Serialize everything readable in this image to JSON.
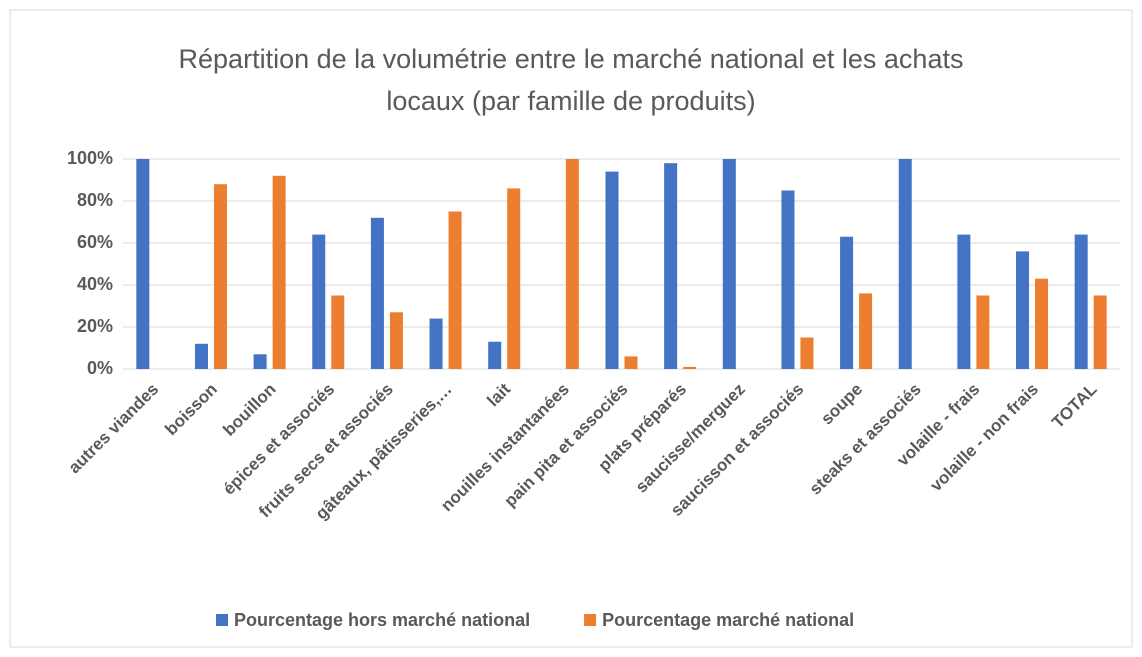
{
  "chart_data": {
    "type": "bar",
    "title": "Répartition de la volumétrie entre le marché national et les achats locaux (par famille de produits)",
    "categories": [
      "autres viandes",
      "boisson",
      "bouillon",
      "épices et associés",
      "fruits secs et associés",
      "gâteaux, pâtisseries,…",
      "lait",
      "nouilles instantanées",
      "pain pita et associés",
      "plats préparés",
      "saucisse/merguez",
      "saucisson et associés",
      "soupe",
      "steaks et associés",
      "volaille - frais",
      "volaille - non frais",
      "TOTAL"
    ],
    "series": [
      {
        "name": "Pourcentage hors marché national",
        "color": "#4472c4",
        "values": [
          100,
          12,
          7,
          64,
          72,
          24,
          13,
          0,
          94,
          98,
          100,
          85,
          63,
          100,
          64,
          56,
          64
        ]
      },
      {
        "name": "Pourcentage marché national",
        "color": "#ed7d31",
        "values": [
          0,
          88,
          92,
          35,
          27,
          75,
          86,
          100,
          6,
          1,
          0,
          15,
          36,
          0,
          35,
          43,
          35
        ]
      }
    ],
    "ylim": [
      0,
      100
    ],
    "yticks": [
      {
        "value": 0,
        "label": "0%"
      },
      {
        "value": 20,
        "label": "20%"
      },
      {
        "value": 40,
        "label": "40%"
      },
      {
        "value": 60,
        "label": "60%"
      },
      {
        "value": 80,
        "label": "80%"
      },
      {
        "value": 100,
        "label": "100%"
      }
    ],
    "grid": true,
    "legend": "bottom"
  }
}
